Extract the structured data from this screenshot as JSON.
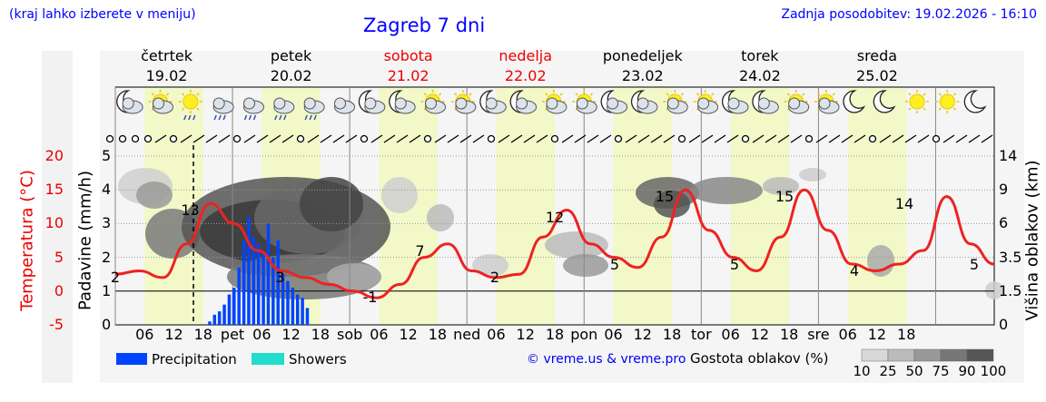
{
  "header": {
    "left_note": "(kraj lahko izberete v meniju)",
    "title": "Zagreb 7 dni",
    "updated": "Zadnja posodobitev: 19.02.2026 - 16:10"
  },
  "days": [
    {
      "name": "četrtek",
      "date": "19.02",
      "weekend": false
    },
    {
      "name": "petek",
      "date": "20.02",
      "weekend": false
    },
    {
      "name": "sobota",
      "date": "21.02",
      "weekend": true
    },
    {
      "name": "nedelja",
      "date": "22.02",
      "weekend": true
    },
    {
      "name": "ponedeljek",
      "date": "23.02",
      "weekend": false
    },
    {
      "name": "torek",
      "date": "24.02",
      "weekend": false
    },
    {
      "name": "sreda",
      "date": "25.02",
      "weekend": false
    }
  ],
  "weather_icons": [
    "moon-cloud-icon",
    "sun-cloud-icon",
    "sun-rain-icon",
    "cloud-rain-icon",
    "cloud-rain-icon",
    "cloud-rain-icon",
    "cloud-showers-icon",
    "cloud-icon",
    "moon-cloud-icon",
    "moon-cloud-icon",
    "sun-cloud-icon",
    "sun-cloud-icon",
    "moon-cloud-icon",
    "moon-cloud-icon",
    "sun-cloud-icon",
    "sun-cloud-icon",
    "moon-cloud-icon",
    "moon-cloud-icon",
    "sun-cloud-icon",
    "sun-cloud-icon",
    "moon-cloud-icon",
    "moon-cloud-icon",
    "sun-cloud-icon",
    "sun-cloud-icon",
    "moon-icon",
    "moon-icon",
    "sun-icon",
    "sun-icon",
    "moon-icon"
  ],
  "wind_icons_note": "",
  "chart_data": {
    "type": "line",
    "x_tick_labels": [
      "06",
      "12",
      "18",
      "pet",
      "06",
      "12",
      "18",
      "sob",
      "06",
      "12",
      "18",
      "ned",
      "06",
      "12",
      "18",
      "pon",
      "06",
      "12",
      "18",
      "tor",
      "06",
      "12",
      "18",
      "sre",
      "06",
      "12",
      "18"
    ],
    "x": [
      0,
      6,
      12,
      18,
      24,
      30,
      36,
      42,
      48,
      54,
      60,
      66,
      72,
      78,
      84,
      90,
      96,
      102,
      108,
      114,
      120,
      126,
      132,
      138,
      144,
      150,
      156,
      162,
      168,
      174,
      180
    ],
    "left_axis": {
      "label": "Padavine (mm/h)",
      "ticks": [
        0,
        1,
        2,
        3,
        4,
        5
      ],
      "range": [
        0,
        5
      ]
    },
    "temp_axis": {
      "label": "Temperatura (°C)",
      "ticks": [
        -5,
        0,
        5,
        10,
        15,
        20
      ]
    },
    "right_axis": {
      "label": "Višina oblakov (km)",
      "ticks": [
        0,
        1.5,
        3.5,
        6.0,
        9.0,
        14
      ]
    },
    "temperature": {
      "name": "",
      "color": "#ee2222",
      "values": [
        2.5,
        3,
        2,
        7,
        13,
        10,
        6,
        3,
        2,
        1,
        0,
        -1,
        1,
        5,
        7,
        3,
        2,
        2.5,
        8,
        12,
        7,
        5,
        3.5,
        8,
        15,
        9,
        5,
        3,
        8,
        15,
        9,
        4,
        3,
        4,
        6,
        14,
        7,
        4
      ]
    },
    "temperature_x": [
      0,
      3,
      6,
      9,
      12,
      15,
      18,
      21,
      24,
      27,
      30,
      33,
      36,
      39,
      42,
      45,
      48,
      51,
      54,
      57,
      60,
      63,
      66,
      69,
      72,
      75,
      78,
      81,
      84,
      87,
      90,
      93,
      96,
      99,
      102,
      105,
      108,
      111
    ],
    "temperature_labels": [
      {
        "x": 0,
        "text": "2"
      },
      {
        "x": 15,
        "text": "13"
      },
      {
        "x": 33,
        "text": "3"
      },
      {
        "x": 51,
        "text": "-1"
      },
      {
        "x": 61,
        "text": "7"
      },
      {
        "x": 76,
        "text": "2"
      },
      {
        "x": 88,
        "text": "12"
      },
      {
        "x": 100,
        "text": "5"
      },
      {
        "x": 110,
        "text": "15"
      },
      {
        "x": 124,
        "text": "5"
      },
      {
        "x": 134,
        "text": "15"
      },
      {
        "x": 148,
        "text": "4"
      },
      {
        "x": 158,
        "text": "14"
      },
      {
        "x": 172,
        "text": "5"
      }
    ],
    "precipitation": {
      "name": "Precipitation",
      "color": "#0044ff",
      "x": [
        17,
        18,
        19,
        20,
        21,
        22,
        23,
        24,
        25,
        26,
        27,
        28,
        29,
        30,
        31,
        32,
        33,
        34,
        35,
        36,
        37
      ],
      "values": [
        0.1,
        0.3,
        0.4,
        0.6,
        0.9,
        1.1,
        1.7,
        2.5,
        3.2,
        2.6,
        2.4,
        2.1,
        3.0,
        2.0,
        2.5,
        1.5,
        1.3,
        1.1,
        0.9,
        0.8,
        0.5
      ]
    },
    "showers": {
      "name": "Showers",
      "color": "#22ddcc",
      "values": []
    },
    "current_time_x": 16,
    "cloud_density_legend": {
      "label": "Gostota oblakov (%)",
      "levels": [
        "10",
        "25",
        "50",
        "75",
        "90",
        "100"
      ]
    },
    "legend": [
      "Precipitation",
      "Showers"
    ],
    "copyright": "© vreme.us & vreme.pro"
  }
}
